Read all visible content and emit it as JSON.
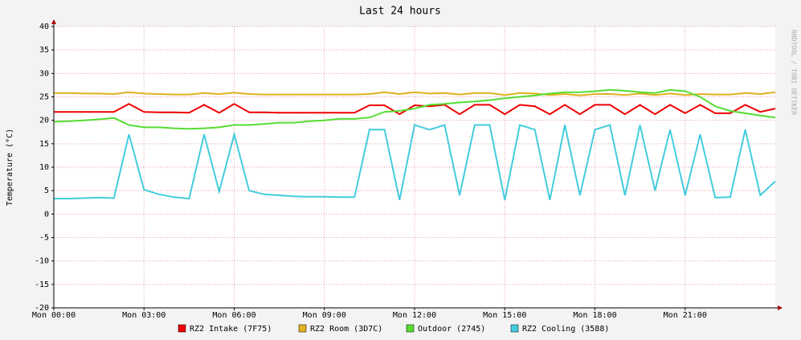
{
  "chart_data": {
    "type": "line",
    "title": "Last 24 hours",
    "y_label": "Temperature (°C)",
    "side_text": "RRDTOOL / TOBI OETIKER",
    "x": [
      0,
      0.5,
      1,
      1.5,
      2,
      2.5,
      3,
      3.5,
      4,
      4.5,
      5,
      5.5,
      6,
      6.5,
      7,
      7.5,
      8,
      8.5,
      9,
      9.5,
      10,
      10.5,
      11,
      11.5,
      12,
      12.5,
      13,
      13.5,
      14,
      14.5,
      15,
      15.5,
      16,
      16.5,
      17,
      17.5,
      18,
      18.5,
      19,
      19.5,
      20,
      20.5,
      21,
      21.5,
      22,
      22.5,
      23,
      23.5,
      24
    ],
    "xlim": [
      0,
      24
    ],
    "xticks": [
      {
        "value": 0,
        "label": "Mon 00:00"
      },
      {
        "value": 3,
        "label": "Mon 03:00"
      },
      {
        "value": 6,
        "label": "Mon 06:00"
      },
      {
        "value": 9,
        "label": "Mon 09:00"
      },
      {
        "value": 12,
        "label": "Mon 12:00"
      },
      {
        "value": 15,
        "label": "Mon 15:00"
      },
      {
        "value": 18,
        "label": "Mon 18:00"
      },
      {
        "value": 21,
        "label": "Mon 21:00"
      }
    ],
    "ylim": [
      -20,
      40
    ],
    "yticks": [
      -20,
      -15,
      -10,
      -5,
      0,
      5,
      10,
      15,
      20,
      25,
      30,
      35,
      40
    ],
    "grid": true,
    "series": [
      {
        "name": "RZ2 Intake (7F75)",
        "color": "#ee0000",
        "values": [
          21.8,
          21.8,
          21.8,
          21.8,
          21.8,
          23.5,
          21.8,
          21.7,
          21.7,
          21.6,
          23.3,
          21.6,
          23.5,
          21.7,
          21.7,
          21.6,
          21.6,
          21.6,
          21.6,
          21.6,
          21.6,
          23.2,
          23.2,
          21.3,
          23.2,
          23,
          23.3,
          21.3,
          23.3,
          23.3,
          21.3,
          23.3,
          23,
          21.3,
          23.3,
          21.3,
          23.3,
          23.3,
          21.3,
          23.3,
          21.3,
          23.3,
          21.5,
          23.3,
          21.5,
          21.5,
          23.3,
          21.8,
          22.5
        ]
      },
      {
        "name": "RZ2 Room (3D7C)",
        "color": "#e0b020",
        "values": [
          25.8,
          25.8,
          25.7,
          25.7,
          25.6,
          26,
          25.7,
          25.6,
          25.5,
          25.5,
          25.8,
          25.6,
          25.9,
          25.6,
          25.5,
          25.5,
          25.5,
          25.5,
          25.5,
          25.5,
          25.5,
          25.6,
          26,
          25.6,
          26,
          25.7,
          25.8,
          25.5,
          25.8,
          25.8,
          25.4,
          25.8,
          25.7,
          25.4,
          25.6,
          25.3,
          25.6,
          25.6,
          25.4,
          25.7,
          25.4,
          25.7,
          25.4,
          25.6,
          25.5,
          25.5,
          25.8,
          25.6,
          26
        ]
      },
      {
        "name": "Outdoor (2745)",
        "color": "#55dd33",
        "values": [
          19.7,
          19.8,
          20,
          20.2,
          20.5,
          19,
          18.5,
          18.5,
          18.3,
          18.2,
          18.3,
          18.5,
          19,
          19,
          19.2,
          19.5,
          19.5,
          19.8,
          20,
          20.3,
          20.3,
          20.6,
          21.8,
          22,
          22.5,
          23.3,
          23.5,
          23.8,
          24,
          24.3,
          24.7,
          25,
          25.3,
          25.7,
          26,
          26,
          26.2,
          26.5,
          26.3,
          26,
          25.8,
          26.5,
          26.2,
          25,
          23,
          22,
          21.5,
          21,
          20.6
        ]
      },
      {
        "name": "RZ2 Cooling (3588)",
        "color": "#44ccdd",
        "values": [
          3.3,
          3.3,
          3.4,
          3.5,
          3.4,
          17,
          5.2,
          4.2,
          3.6,
          3.3,
          17,
          4.8,
          17,
          5,
          4.2,
          4,
          3.8,
          3.7,
          3.7,
          3.6,
          3.6,
          18,
          18,
          3,
          19,
          18,
          19,
          4,
          19,
          19,
          3,
          19,
          18,
          3,
          19,
          4,
          18,
          19,
          4,
          19,
          5,
          18,
          4,
          17,
          3.5,
          3.6,
          18,
          4,
          7
        ]
      }
    ]
  }
}
